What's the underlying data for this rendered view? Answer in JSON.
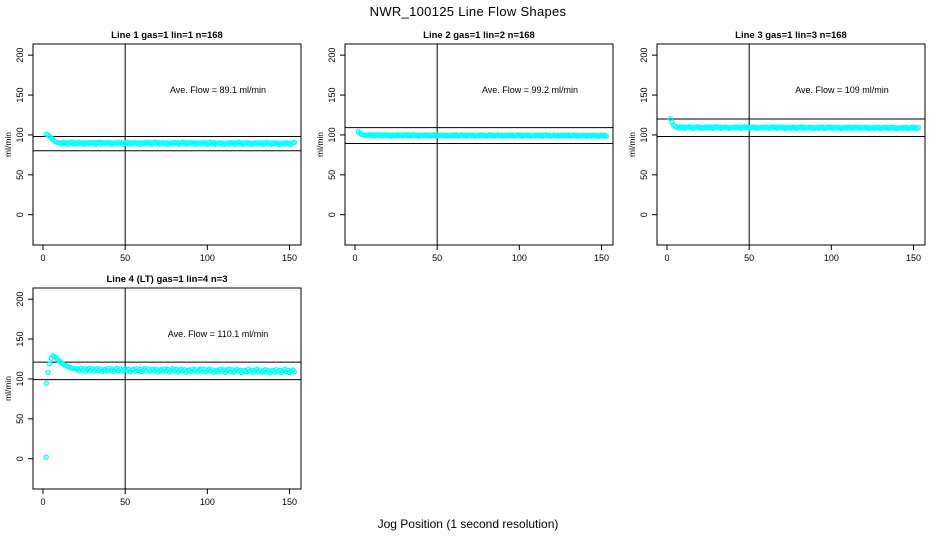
{
  "title": "NWR_100125  Line Flow Shapes",
  "xlabel": "Jog Position (1 second resolution)",
  "colors": {
    "points": "#00FFFF",
    "reference_lines": "#000000",
    "box": "#000000",
    "background": "#FFFFFF"
  },
  "chart_data": [
    {
      "type": "scatter",
      "title": "Line 1 gas=1 lin=1 n=168",
      "ylabel": "ml/min",
      "annotation": "Ave. Flow =  89.1  ml/min",
      "ave_flow": 89.1,
      "n": 168,
      "grid_pos": [
        0,
        0
      ],
      "xlim": [
        -6.1,
        157
      ],
      "ylim": [
        -38,
        214
      ],
      "xticks": [
        0,
        50,
        100,
        150
      ],
      "yticks": [
        0,
        50,
        100,
        150,
        200
      ],
      "vline_x": 50,
      "hlines": [
        98.0,
        80.2
      ],
      "transient": [
        [
          2,
          101
        ],
        [
          3,
          99.8
        ],
        [
          4,
          98.2
        ],
        [
          5,
          96.3
        ],
        [
          6,
          94.2
        ],
        [
          7,
          92.4
        ],
        [
          8,
          91.2
        ],
        [
          9,
          90.4
        ]
      ],
      "steady": {
        "x_from": 10,
        "x_to": 153,
        "base": 89.6,
        "end": 89.2,
        "jitter": [
          0.5,
          -0.7,
          1.2,
          -0.2,
          0.8,
          -1.1,
          0.3,
          1.5,
          -0.5,
          0.9,
          -0.9,
          0.2,
          1.1,
          -0.4,
          0.7,
          -1.3,
          0.0
        ]
      }
    },
    {
      "type": "scatter",
      "title": "Line 2 gas=1 lin=2 n=168",
      "ylabel": "ml/min",
      "annotation": "Ave. Flow =  99.2  ml/min",
      "ave_flow": 99.2,
      "n": 168,
      "grid_pos": [
        0,
        1
      ],
      "xlim": [
        -6.1,
        157
      ],
      "ylim": [
        -38,
        214
      ],
      "xticks": [
        0,
        50,
        100,
        150
      ],
      "yticks": [
        0,
        50,
        100,
        150,
        200
      ],
      "vline_x": 50,
      "hlines": [
        109.1,
        89.3
      ],
      "transient": [
        [
          2,
          104
        ],
        [
          3,
          102
        ],
        [
          4,
          100.6
        ],
        [
          5,
          99.9
        ],
        [
          6,
          99.4
        ]
      ],
      "steady": {
        "x_from": 7,
        "x_to": 153,
        "base": 99.4,
        "end": 99.0,
        "jitter": [
          0.4,
          -0.5,
          0.9,
          -0.1,
          0.6,
          -0.8,
          0.2,
          1.0,
          -0.4,
          0.7,
          -0.7,
          0.1,
          0.8,
          -0.3,
          0.5,
          -0.9,
          0.0
        ]
      }
    },
    {
      "type": "scatter",
      "title": "Line 3 gas=1 lin=3 n=168",
      "ylabel": "ml/min",
      "annotation": "Ave. Flow =  109  ml/min",
      "ave_flow": 109,
      "n": 168,
      "grid_pos": [
        0,
        2
      ],
      "xlim": [
        -6.1,
        157
      ],
      "ylim": [
        -38,
        214
      ],
      "xticks": [
        0,
        50,
        100,
        150
      ],
      "yticks": [
        0,
        50,
        100,
        150,
        200
      ],
      "vline_x": 50,
      "hlines": [
        119.9,
        98.1
      ],
      "transient": [
        [
          2,
          120.5
        ],
        [
          3,
          116
        ],
        [
          4,
          112.5
        ],
        [
          5,
          110.5
        ]
      ],
      "steady": {
        "x_from": 6,
        "x_to": 153,
        "base": 109.3,
        "end": 108.8,
        "jitter": [
          0.3,
          -0.6,
          1.0,
          -0.2,
          0.7,
          -0.9,
          0.1,
          1.1,
          -0.3,
          0.6,
          -0.8,
          0.2,
          0.9,
          -0.4,
          0.5,
          -1.0,
          0.0
        ]
      }
    },
    {
      "type": "scatter",
      "title": "Line 4 (LT) gas=1 lin=4 n=3",
      "ylabel": "ml/min",
      "annotation": "Ave. Flow =  110.1  ml/min",
      "ave_flow": 110.1,
      "n": 3,
      "grid_pos": [
        1,
        0
      ],
      "xlim": [
        -6.1,
        157
      ],
      "ylim": [
        -38,
        214
      ],
      "xticks": [
        0,
        50,
        100,
        150
      ],
      "yticks": [
        0,
        50,
        100,
        150,
        200
      ],
      "vline_x": 50,
      "hlines": [
        121.1,
        99.1
      ],
      "transient": [
        [
          2,
          2
        ],
        [
          2,
          94.5
        ],
        [
          3,
          108
        ],
        [
          4,
          119
        ],
        [
          5,
          126
        ],
        [
          6,
          129
        ],
        [
          7,
          128
        ],
        [
          8,
          126.5
        ],
        [
          9,
          124.5
        ],
        [
          10,
          122.5
        ],
        [
          11,
          120.5
        ],
        [
          12,
          119
        ],
        [
          13,
          117.5
        ],
        [
          14,
          116.5
        ],
        [
          15,
          115.5
        ],
        [
          16,
          114.5
        ],
        [
          17,
          114
        ],
        [
          18,
          113.5
        ],
        [
          19,
          113
        ],
        [
          20,
          112.5
        ]
      ],
      "steady": {
        "x_from": 21,
        "x_to": 153,
        "base": 111.5,
        "end": 109.5,
        "jitter": [
          0.8,
          -1.2,
          2.0,
          -0.4,
          1.3,
          -1.8,
          0.5,
          2.3,
          -0.8,
          1.5,
          -1.5,
          0.3,
          1.8,
          -0.6,
          1.1,
          -2.1,
          0.1
        ]
      }
    }
  ]
}
